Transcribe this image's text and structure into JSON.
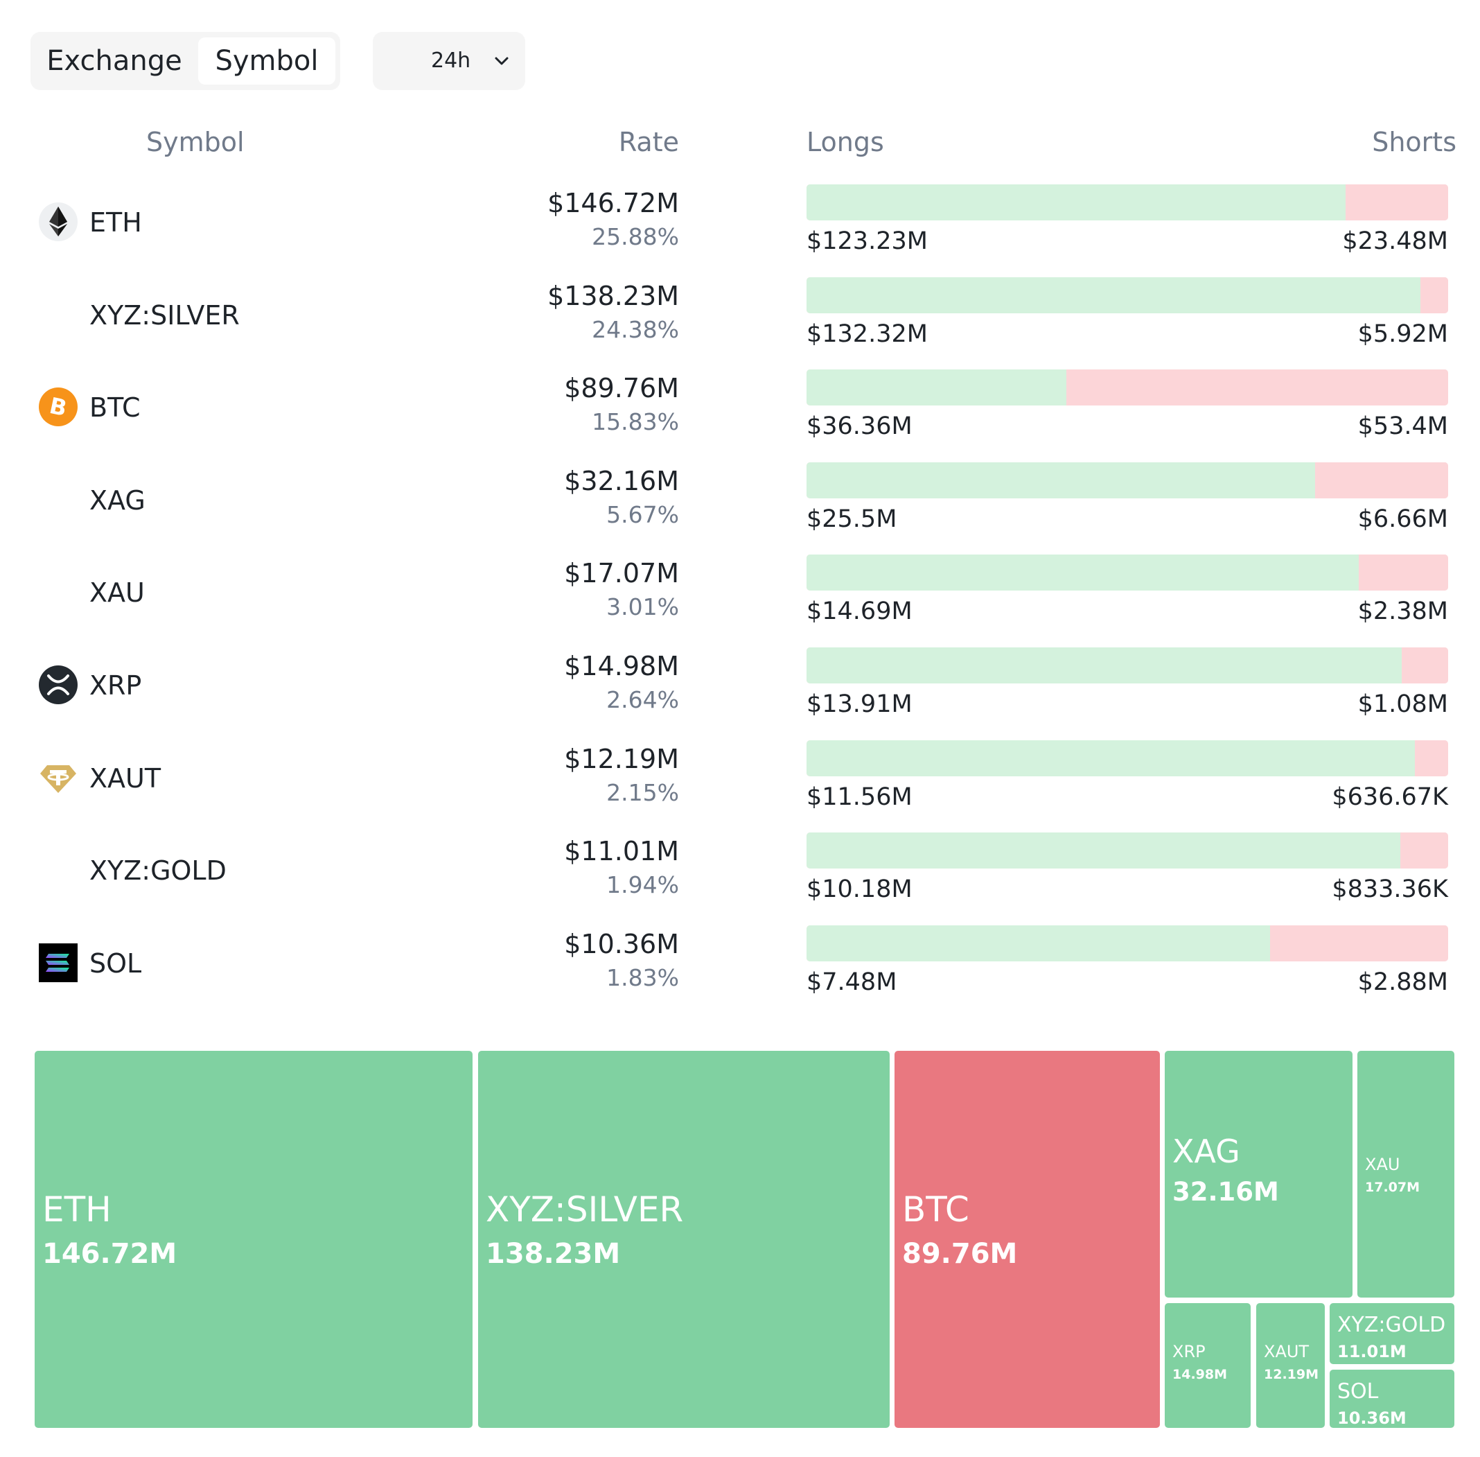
{
  "toggle": {
    "exchange_label": "Exchange",
    "symbol_label": "Symbol"
  },
  "timeframe": {
    "selected": "24h"
  },
  "table_header": {
    "symbol": "Symbol",
    "rate": "Rate",
    "longs": "Longs",
    "shorts": "Shorts"
  },
  "rows": [
    {
      "symbol": "ETH",
      "icon": "ethereum-icon",
      "amount": "$146.72M",
      "pct": "25.88%",
      "longs": "$123.23M",
      "shorts": "$23.48M",
      "long_frac": 0.84
    },
    {
      "symbol": "XYZ:SILVER",
      "icon": "",
      "amount": "$138.23M",
      "pct": "24.38%",
      "longs": "$132.32M",
      "shorts": "$5.92M",
      "long_frac": 0.957
    },
    {
      "symbol": "BTC",
      "icon": "bitcoin-icon",
      "amount": "$89.76M",
      "pct": "15.83%",
      "longs": "$36.36M",
      "shorts": "$53.4M",
      "long_frac": 0.405
    },
    {
      "symbol": "XAG",
      "icon": "",
      "amount": "$32.16M",
      "pct": "5.67%",
      "longs": "$25.5M",
      "shorts": "$6.66M",
      "long_frac": 0.793
    },
    {
      "symbol": "XAU",
      "icon": "",
      "amount": "$17.07M",
      "pct": "3.01%",
      "longs": "$14.69M",
      "shorts": "$2.38M",
      "long_frac": 0.861
    },
    {
      "symbol": "XRP",
      "icon": "xrp-icon",
      "amount": "$14.98M",
      "pct": "2.64%",
      "longs": "$13.91M",
      "shorts": "$1.08M",
      "long_frac": 0.928
    },
    {
      "symbol": "XAUT",
      "icon": "tether-gold-icon",
      "amount": "$12.19M",
      "pct": "2.15%",
      "longs": "$11.56M",
      "shorts": "$636.67K",
      "long_frac": 0.948
    },
    {
      "symbol": "XYZ:GOLD",
      "icon": "",
      "amount": "$11.01M",
      "pct": "1.94%",
      "longs": "$10.18M",
      "shorts": "$833.36K",
      "long_frac": 0.925
    },
    {
      "symbol": "SOL",
      "icon": "solana-icon",
      "amount": "$10.36M",
      "pct": "1.83%",
      "longs": "$7.48M",
      "shorts": "$2.88M",
      "long_frac": 0.722
    }
  ],
  "treemap": [
    {
      "name": "ETH",
      "value": "146.72M",
      "side": "long"
    },
    {
      "name": "XYZ:SILVER",
      "value": "138.23M",
      "side": "long"
    },
    {
      "name": "BTC",
      "value": "89.76M",
      "side": "short"
    },
    {
      "name": "XAG",
      "value": "32.16M",
      "side": "long"
    },
    {
      "name": "XAU",
      "value": "17.07M",
      "side": "long"
    },
    {
      "name": "XRP",
      "value": "14.98M",
      "side": "long"
    },
    {
      "name": "XAUT",
      "value": "12.19M",
      "side": "long"
    },
    {
      "name": "XYZ:GOLD",
      "value": "11.01M",
      "side": "long"
    },
    {
      "name": "SOL",
      "value": "10.36M",
      "side": "long"
    }
  ],
  "colors": {
    "long_bar": "#d4f2dd",
    "short_bar": "#fcd5d8",
    "long_tile": "#80d1a1",
    "short_tile": "#e97880"
  }
}
